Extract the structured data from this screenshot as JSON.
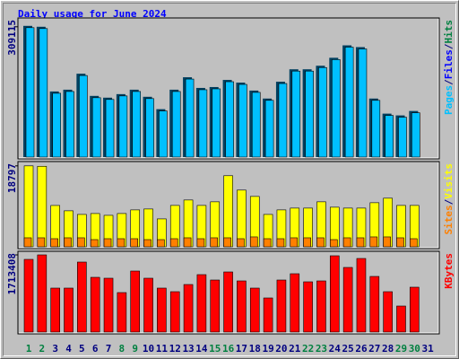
{
  "title": "Daily usage for June 2024",
  "categories": [
    "1",
    "2",
    "3",
    "4",
    "5",
    "6",
    "7",
    "8",
    "9",
    "10",
    "11",
    "12",
    "13",
    "14",
    "15",
    "16",
    "17",
    "18",
    "19",
    "20",
    "21",
    "22",
    "23",
    "24",
    "25",
    "26",
    "27",
    "28",
    "29",
    "30",
    "31"
  ],
  "label_color": "#000080",
  "highlight_color": "#008040",
  "highlight_indices": [
    0,
    1,
    7,
    8,
    14,
    15,
    21,
    22,
    28,
    29
  ],
  "chart_data": [
    {
      "type": "bar",
      "ylim": [
        0,
        330000
      ],
      "yticks": [
        309115
      ],
      "shadow_color": "#004060",
      "y_label_parts": [
        {
          "text": "Pages",
          "color": "#00c0ff"
        },
        {
          "text": "/",
          "color": "#000080"
        },
        {
          "text": "Files",
          "color": "#0000ff"
        },
        {
          "text": "/",
          "color": "#000080"
        },
        {
          "text": "Hits",
          "color": "#008040"
        }
      ],
      "series": [
        {
          "color": "#00c0ff",
          "values": [
            309115,
            307000,
            153500,
            157700,
            195600,
            143000,
            138800,
            147200,
            157700,
            140900,
            111500,
            157700,
            187200,
            161900,
            164000,
            180900,
            174500,
            155600,
            136700,
            176600,
            206100,
            206100,
            214500,
            233400,
            262900,
            258700,
            136700,
            100900,
            96700,
            107200,
            null
          ]
        }
      ]
    },
    {
      "type": "bar",
      "ylim": [
        0,
        19800
      ],
      "yticks": [
        18797
      ],
      "y_label_parts": [
        {
          "text": "Sites",
          "color": "#ff8000"
        },
        {
          "text": "/",
          "color": "#000080"
        },
        {
          "text": "Visits",
          "color": "#ffff00"
        }
      ],
      "series": [
        {
          "color": "#ffff00",
          "values": [
            18797,
            18700,
            9600,
            8360,
            7520,
            7730,
            7310,
            7730,
            8570,
            8780,
            6480,
            9610,
            10870,
            9610,
            10450,
            16510,
            13170,
            11700,
            7520,
            8570,
            8990,
            8990,
            10450,
            9200,
            8990,
            8990,
            10240,
            11290,
            9610,
            9610,
            null
          ]
        },
        {
          "color": "#ff8000",
          "values": [
            2090,
            2090,
            1880,
            2090,
            2090,
            1670,
            1880,
            1880,
            1880,
            1670,
            1670,
            1880,
            2090,
            1880,
            2090,
            2090,
            1880,
            2300,
            1880,
            1880,
            2090,
            2090,
            2090,
            1670,
            2090,
            2090,
            2300,
            2300,
            2090,
            1880,
            null
          ]
        }
      ]
    },
    {
      "type": "bar",
      "ylim": [
        0,
        1793000
      ],
      "yticks": [
        1713408
      ],
      "y_label_parts": [
        {
          "text": "KBytes",
          "color": "#ff0000"
        }
      ],
      "series": [
        {
          "color": "#ff0000",
          "values": [
            1613800,
            1713408,
            976200,
            976200,
            1554000,
            1215300,
            1195400,
            876600,
            1354800,
            1195400,
            976200,
            896500,
            1055900,
            1275100,
            1155500,
            1334800,
            1135600,
            976200,
            757100,
            1155500,
            1295000,
            1115700,
            1135600,
            1693500,
            1434500,
            1633700,
            1235200,
            896500,
            577800,
            996200,
            null
          ]
        }
      ]
    }
  ]
}
